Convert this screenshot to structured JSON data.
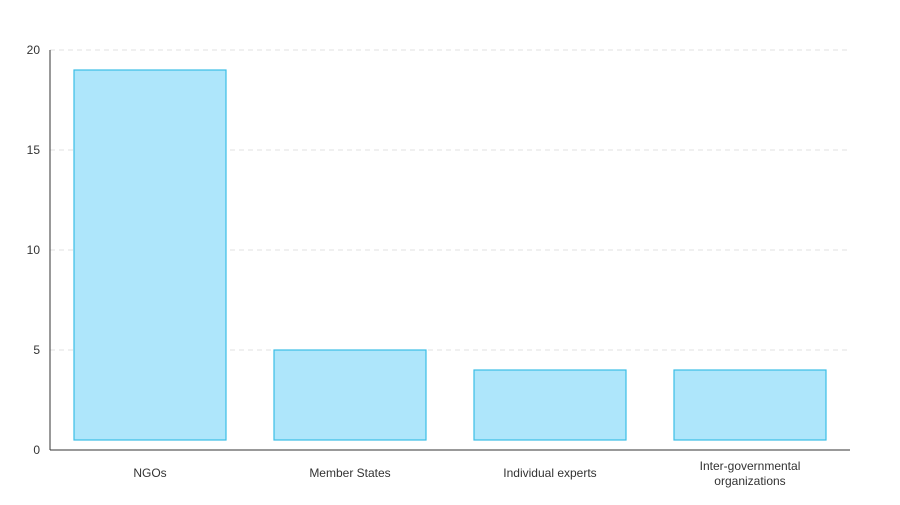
{
  "chart_data": {
    "type": "bar",
    "categories": [
      "NGOs",
      "Member States",
      "Individual experts",
      "Inter-governmental organizations"
    ],
    "category_lines": [
      [
        "NGOs"
      ],
      [
        "Member States"
      ],
      [
        "Individual experts"
      ],
      [
        "Inter-governmental",
        "organizations"
      ]
    ],
    "values": [
      19,
      5,
      4,
      4
    ],
    "title": "",
    "xlabel": "",
    "ylabel": "",
    "ylim": [
      0,
      20
    ],
    "yticks": [
      0,
      5,
      10,
      15,
      20
    ],
    "grid": true,
    "legend": "none",
    "colors": {
      "bar_fill": "#aee6fb",
      "bar_stroke": "#3bbde6",
      "grid": "#e2e2e2",
      "axis": "#333333",
      "text": "#333333"
    }
  }
}
